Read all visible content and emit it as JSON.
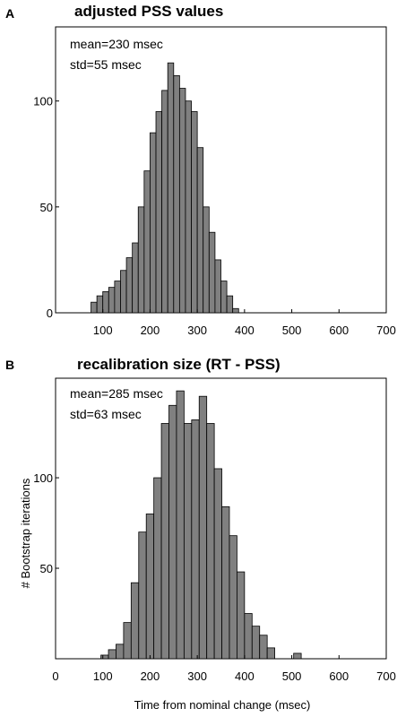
{
  "chart_data": [
    {
      "type": "bar",
      "panel": "A",
      "title": "adjusted PSS values",
      "annotations": [
        "mean=230 msec",
        "std=55 msec"
      ],
      "xlabel": "",
      "ylabel": "",
      "xlim": [
        0,
        700
      ],
      "ylim": [
        0,
        135
      ],
      "xticks": [
        100,
        200,
        300,
        400,
        500,
        600,
        700
      ],
      "yticks": [
        0,
        50,
        100
      ],
      "bar_color": "#808080",
      "bin_width": 12.5,
      "bins": [
        {
          "x": 75,
          "y": 5
        },
        {
          "x": 87.5,
          "y": 8
        },
        {
          "x": 100,
          "y": 10
        },
        {
          "x": 112.5,
          "y": 12
        },
        {
          "x": 125,
          "y": 15
        },
        {
          "x": 137.5,
          "y": 20
        },
        {
          "x": 150,
          "y": 26
        },
        {
          "x": 162.5,
          "y": 33
        },
        {
          "x": 175,
          "y": 50
        },
        {
          "x": 187.5,
          "y": 67
        },
        {
          "x": 200,
          "y": 85
        },
        {
          "x": 212.5,
          "y": 95
        },
        {
          "x": 225,
          "y": 105
        },
        {
          "x": 237.5,
          "y": 118
        },
        {
          "x": 250,
          "y": 112
        },
        {
          "x": 262.5,
          "y": 106
        },
        {
          "x": 275,
          "y": 100
        },
        {
          "x": 287.5,
          "y": 95
        },
        {
          "x": 300,
          "y": 78
        },
        {
          "x": 312.5,
          "y": 50
        },
        {
          "x": 325,
          "y": 38
        },
        {
          "x": 337.5,
          "y": 25
        },
        {
          "x": 350,
          "y": 15
        },
        {
          "x": 362.5,
          "y": 8
        },
        {
          "x": 375,
          "y": 2
        }
      ]
    },
    {
      "type": "bar",
      "panel": "B",
      "title": "recalibration size (RT - PSS)",
      "annotations": [
        "mean=285 msec",
        "std=63 msec"
      ],
      "xlabel": "Time from nominal change (msec)",
      "ylabel": "# Bootstrap iterations",
      "xlim": [
        0,
        700
      ],
      "ylim": [
        0,
        155
      ],
      "xticks": [
        0,
        100,
        200,
        300,
        400,
        500,
        600,
        700
      ],
      "yticks": [
        50,
        100
      ],
      "bar_color": "#808080",
      "bin_width": 16,
      "bins": [
        {
          "x": 96,
          "y": 2
        },
        {
          "x": 112,
          "y": 5
        },
        {
          "x": 128,
          "y": 8
        },
        {
          "x": 144,
          "y": 20
        },
        {
          "x": 160,
          "y": 42
        },
        {
          "x": 176,
          "y": 70
        },
        {
          "x": 192,
          "y": 80
        },
        {
          "x": 208,
          "y": 100
        },
        {
          "x": 224,
          "y": 130
        },
        {
          "x": 240,
          "y": 140
        },
        {
          "x": 256,
          "y": 148
        },
        {
          "x": 272,
          "y": 130
        },
        {
          "x": 288,
          "y": 132
        },
        {
          "x": 304,
          "y": 145
        },
        {
          "x": 320,
          "y": 130
        },
        {
          "x": 336,
          "y": 105
        },
        {
          "x": 352,
          "y": 84
        },
        {
          "x": 368,
          "y": 68
        },
        {
          "x": 384,
          "y": 48
        },
        {
          "x": 400,
          "y": 25
        },
        {
          "x": 416,
          "y": 18
        },
        {
          "x": 432,
          "y": 13
        },
        {
          "x": 448,
          "y": 6
        },
        {
          "x": 504,
          "y": 3
        }
      ]
    }
  ]
}
